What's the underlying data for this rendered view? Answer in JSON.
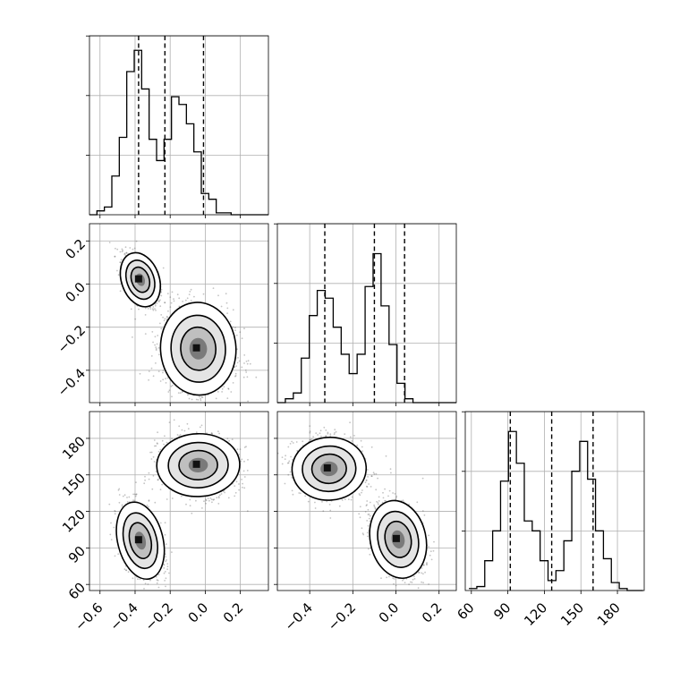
{
  "chart_data": [
    {
      "type": "histogram",
      "panel": "p00",
      "x_range": [
        -0.66,
        0.36
      ],
      "y_range": [
        0,
        0.185
      ],
      "quantile_lines": [
        -0.38,
        -0.23,
        -0.01
      ],
      "bins": {
        "start": -0.66,
        "width": 0.0425,
        "counts": [
          0,
          0.004,
          0.008,
          0.04,
          0.08,
          0.148,
          0.17,
          0.13,
          0.078,
          0.056,
          0.078,
          0.122,
          0.114,
          0.094,
          0.065,
          0.022,
          0.016,
          0.002,
          0.002,
          0.0,
          0,
          0,
          0,
          0
        ]
      },
      "x_ticks": [],
      "y_ticks": []
    },
    {
      "type": "scatter-contour",
      "panel": "p10",
      "x_range": [
        -0.66,
        0.36
      ],
      "y_range": [
        -0.55,
        0.28
      ],
      "clusters": [
        {
          "cx": -0.37,
          "cy": 0.02,
          "sx": 0.05,
          "sy": 0.06,
          "rho": -0.55,
          "n": 900
        },
        {
          "cx": -0.04,
          "cy": -0.3,
          "sx": 0.1,
          "sy": 0.1,
          "rho": -0.1,
          "n": 1300
        }
      ],
      "y_ticks": [
        "0.2",
        "0.0",
        "−0.2",
        "−0.4"
      ],
      "y_tick_values": [
        0.2,
        0.0,
        -0.2,
        -0.4
      ]
    },
    {
      "type": "histogram",
      "panel": "p11",
      "x_range": [
        -0.55,
        0.28
      ],
      "y_range": [
        0,
        0.185
      ],
      "quantile_lines": [
        -0.33,
        -0.1,
        0.04
      ],
      "bins": {
        "start": -0.55,
        "width": 0.037,
        "counts": [
          0,
          0.004,
          0.01,
          0.046,
          0.09,
          0.116,
          0.108,
          0.078,
          0.05,
          0.03,
          0.05,
          0.12,
          0.154,
          0.1,
          0.06,
          0.02,
          0.004,
          0.0,
          0,
          0,
          0,
          0,
          0
        ]
      },
      "x_ticks": [],
      "y_ticks": []
    },
    {
      "type": "scatter-contour",
      "panel": "p20",
      "x_range": [
        -0.66,
        0.36
      ],
      "y_range": [
        55,
        202
      ],
      "clusters": [
        {
          "cx": -0.37,
          "cy": 96,
          "sx": 0.06,
          "sy": 15,
          "rho": -0.4,
          "n": 1000
        },
        {
          "cx": -0.04,
          "cy": 158,
          "sx": 0.11,
          "sy": 12,
          "rho": -0.05,
          "n": 1200
        }
      ],
      "x_ticks": [
        "−0.6",
        "−0.4",
        "−0.2",
        "0.0",
        "0.2"
      ],
      "x_tick_values": [
        -0.6,
        -0.4,
        -0.2,
        0.0,
        0.2
      ],
      "y_ticks": [
        "180",
        "150",
        "120",
        "90",
        "60"
      ],
      "y_tick_values": [
        180,
        150,
        120,
        90,
        60
      ]
    },
    {
      "type": "scatter-contour",
      "panel": "p21",
      "x_range": [
        -0.55,
        0.28
      ],
      "y_range": [
        55,
        202
      ],
      "clusters": [
        {
          "cx": -0.31,
          "cy": 155,
          "sx": 0.08,
          "sy": 12,
          "rho": -0.1,
          "n": 1200
        },
        {
          "cx": 0.01,
          "cy": 97,
          "sx": 0.06,
          "sy": 15,
          "rho": -0.35,
          "n": 1000
        }
      ],
      "x_ticks": [
        "−0.4",
        "−0.2",
        "0.0",
        "0.2"
      ],
      "x_tick_values": [
        -0.4,
        -0.2,
        0.0,
        0.2
      ]
    },
    {
      "type": "histogram",
      "panel": "p22",
      "x_range": [
        55,
        202
      ],
      "y_range": [
        0,
        0.18
      ],
      "quantile_lines": [
        92,
        126,
        160
      ],
      "bins": {
        "start": 58,
        "width": 6.5,
        "counts": [
          0.002,
          0.004,
          0.03,
          0.06,
          0.11,
          0.16,
          0.128,
          0.07,
          0.06,
          0.03,
          0.01,
          0.02,
          0.05,
          0.12,
          0.15,
          0.112,
          0.06,
          0.032,
          0.008,
          0.002,
          0.0,
          0.0
        ]
      },
      "x_ticks": [
        "60",
        "90",
        "120",
        "150",
        "180"
      ],
      "x_tick_values": [
        60,
        90,
        120,
        150,
        180
      ]
    }
  ]
}
